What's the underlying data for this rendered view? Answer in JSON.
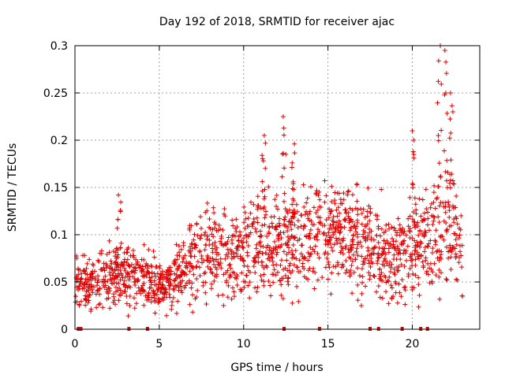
{
  "chart_data": {
    "type": "scatter",
    "title": "Day 192 of 2018, SRMTID for receiver ajac",
    "xlabel": "GPS time / hours",
    "ylabel": "SRMTID / TECUs",
    "xlim": [
      0,
      24
    ],
    "ylim": [
      0,
      0.3
    ],
    "x_ticks": [
      0,
      5,
      10,
      15,
      20
    ],
    "x_tick_labels": [
      "0",
      "5",
      "10",
      "15",
      "20"
    ],
    "y_ticks": [
      0,
      0.05,
      0.1,
      0.15,
      0.2,
      0.25,
      0.3
    ],
    "y_tick_labels": [
      "0",
      "0.05",
      "0.1",
      "0.15",
      "0.2",
      "0.25",
      "0.3"
    ],
    "grid": true,
    "marker": "+",
    "color": "#e00000",
    "trend": {
      "x": [
        0,
        1,
        2,
        3,
        4,
        5,
        6,
        7,
        8,
        9,
        10,
        11,
        12,
        13,
        14,
        15,
        16,
        17,
        18,
        19,
        20,
        21,
        22,
        23
      ],
      "y": [
        0.05,
        0.05,
        0.055,
        0.06,
        0.055,
        0.045,
        0.055,
        0.07,
        0.085,
        0.08,
        0.085,
        0.095,
        0.09,
        0.095,
        0.1,
        0.1,
        0.1,
        0.095,
        0.085,
        0.075,
        0.09,
        0.095,
        0.11,
        0.09
      ]
    },
    "peaks": [
      {
        "x": 2.6,
        "y": 0.142
      },
      {
        "x": 11.2,
        "y": 0.205
      },
      {
        "x": 12.4,
        "y": 0.225
      },
      {
        "x": 12.9,
        "y": 0.196
      },
      {
        "x": 20.1,
        "y": 0.21
      },
      {
        "x": 21.6,
        "y": 0.3
      },
      {
        "x": 22.0,
        "y": 0.295
      },
      {
        "x": 22.3,
        "y": 0.25
      }
    ],
    "zero_markers_x": [
      0.2,
      0.35,
      3.2,
      4.3,
      12.4,
      14.5,
      17.5,
      18.0,
      19.4,
      20.5,
      20.9
    ]
  }
}
